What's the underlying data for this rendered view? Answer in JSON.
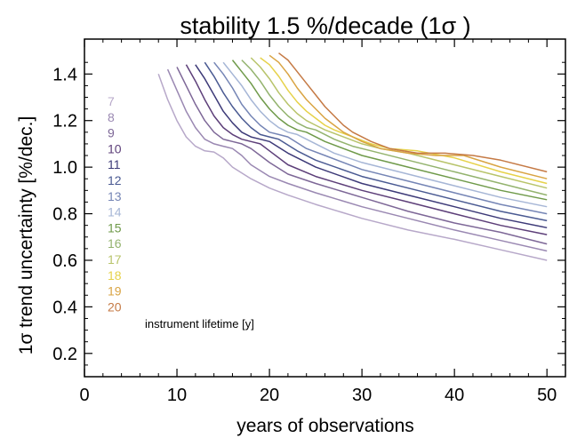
{
  "chart_data": {
    "type": "line",
    "title": "stability 1.5 %/decade (1σ )",
    "xlabel": "years of observations",
    "ylabel": "1σ  trend uncertainty [%/dec.]",
    "xlim": [
      0,
      52
    ],
    "ylim": [
      0.1,
      1.55
    ],
    "xticks": [
      0,
      10,
      20,
      30,
      40,
      50
    ],
    "yticks": [
      0.2,
      0.4,
      0.6,
      0.8,
      1.0,
      1.2,
      1.4
    ],
    "ytick_labels": [
      "0.2",
      "0.4",
      "0.6",
      "0.8",
      "1.0",
      "1.2",
      "1.4"
    ],
    "grid": false,
    "legend_placement": "left",
    "legend_note": "instrument lifetime [y]",
    "series": [
      {
        "name": "7",
        "color": "#b7a8c9",
        "x": [
          8,
          9,
          10,
          11,
          12,
          13,
          14,
          15,
          16,
          18,
          20,
          22,
          25,
          30,
          35,
          40,
          45,
          50
        ],
        "y": [
          1.4,
          1.29,
          1.2,
          1.13,
          1.09,
          1.07,
          1.065,
          1.04,
          1.0,
          0.95,
          0.91,
          0.88,
          0.84,
          0.78,
          0.73,
          0.69,
          0.645,
          0.6
        ]
      },
      {
        "name": "8",
        "color": "#9a88b2",
        "x": [
          9,
          10,
          11,
          12,
          13,
          14,
          15,
          16,
          17,
          18,
          20,
          22,
          25,
          30,
          35,
          40,
          45,
          50
        ],
        "y": [
          1.42,
          1.33,
          1.24,
          1.17,
          1.12,
          1.1,
          1.09,
          1.08,
          1.05,
          1.01,
          0.96,
          0.93,
          0.89,
          0.83,
          0.78,
          0.73,
          0.685,
          0.64
        ]
      },
      {
        "name": "9",
        "color": "#7d6797",
        "x": [
          10,
          11,
          12,
          13,
          14,
          15,
          16,
          17,
          18,
          19,
          20,
          22,
          25,
          30,
          35,
          40,
          45,
          50
        ],
        "y": [
          1.43,
          1.35,
          1.27,
          1.2,
          1.15,
          1.12,
          1.11,
          1.1,
          1.08,
          1.05,
          1.02,
          0.97,
          0.93,
          0.87,
          0.81,
          0.76,
          0.72,
          0.67
        ]
      },
      {
        "name": "10",
        "color": "#5d3f79",
        "x": [
          11,
          12,
          13,
          14,
          15,
          16,
          17,
          18,
          19,
          20,
          22,
          25,
          30,
          35,
          40,
          45,
          50
        ],
        "y": [
          1.44,
          1.37,
          1.29,
          1.22,
          1.17,
          1.14,
          1.12,
          1.11,
          1.1,
          1.07,
          1.01,
          0.96,
          0.9,
          0.85,
          0.8,
          0.75,
          0.71
        ]
      },
      {
        "name": "11",
        "color": "#3d3a78",
        "x": [
          12,
          13,
          14,
          15,
          16,
          17,
          18,
          19,
          20,
          22,
          25,
          30,
          35,
          40,
          45,
          50
        ],
        "y": [
          1.44,
          1.38,
          1.31,
          1.24,
          1.19,
          1.15,
          1.13,
          1.12,
          1.11,
          1.06,
          1.0,
          0.93,
          0.88,
          0.83,
          0.78,
          0.74
        ]
      },
      {
        "name": "12",
        "color": "#4a5a92",
        "x": [
          13,
          14,
          15,
          16,
          17,
          18,
          19,
          20,
          21,
          23,
          25,
          30,
          35,
          40,
          45,
          50
        ],
        "y": [
          1.45,
          1.39,
          1.32,
          1.26,
          1.21,
          1.17,
          1.14,
          1.13,
          1.12,
          1.07,
          1.03,
          0.96,
          0.91,
          0.86,
          0.81,
          0.77
        ]
      },
      {
        "name": "13",
        "color": "#7585b5",
        "x": [
          14,
          15,
          16,
          17,
          18,
          19,
          20,
          21,
          22,
          24,
          26,
          30,
          35,
          40,
          45,
          50
        ],
        "y": [
          1.45,
          1.4,
          1.34,
          1.27,
          1.22,
          1.18,
          1.15,
          1.14,
          1.13,
          1.08,
          1.05,
          0.99,
          0.94,
          0.89,
          0.84,
          0.8
        ]
      },
      {
        "name": "14",
        "color": "#a6b6d6",
        "x": [
          15,
          16,
          17,
          18,
          19,
          20,
          21,
          22,
          23,
          25,
          27,
          30,
          35,
          40,
          45,
          50
        ],
        "y": [
          1.45,
          1.4,
          1.35,
          1.29,
          1.24,
          1.2,
          1.17,
          1.15,
          1.14,
          1.1,
          1.06,
          1.02,
          0.97,
          0.92,
          0.87,
          0.83
        ]
      },
      {
        "name": "15",
        "color": "#6f9a4a",
        "x": [
          16,
          17,
          18,
          19,
          20,
          21,
          22,
          23,
          24,
          26,
          28,
          30,
          35,
          40,
          45,
          50
        ],
        "y": [
          1.46,
          1.41,
          1.36,
          1.3,
          1.25,
          1.21,
          1.18,
          1.16,
          1.15,
          1.11,
          1.08,
          1.05,
          1.0,
          0.95,
          0.9,
          0.86
        ]
      },
      {
        "name": "16",
        "color": "#93b36e",
        "x": [
          17,
          18,
          19,
          20,
          21,
          22,
          23,
          24,
          25,
          27,
          29,
          31,
          35,
          40,
          45,
          50
        ],
        "y": [
          1.46,
          1.42,
          1.37,
          1.31,
          1.26,
          1.22,
          1.19,
          1.17,
          1.16,
          1.12,
          1.09,
          1.07,
          1.03,
          0.98,
          0.93,
          0.88
        ]
      },
      {
        "name": "17",
        "color": "#b8c46b",
        "x": [
          18,
          19,
          20,
          21,
          22,
          23,
          24,
          25,
          26,
          28,
          30,
          32,
          35,
          40,
          45,
          50
        ],
        "y": [
          1.47,
          1.43,
          1.38,
          1.32,
          1.27,
          1.23,
          1.2,
          1.18,
          1.16,
          1.13,
          1.1,
          1.08,
          1.06,
          1.01,
          0.96,
          0.91
        ]
      },
      {
        "name": "18",
        "color": "#e6d24a",
        "x": [
          19,
          20,
          21,
          22,
          23,
          24,
          25,
          26,
          27,
          29,
          31,
          33,
          36,
          40,
          45,
          50
        ],
        "y": [
          1.47,
          1.44,
          1.39,
          1.33,
          1.28,
          1.24,
          1.21,
          1.18,
          1.16,
          1.13,
          1.1,
          1.08,
          1.07,
          1.04,
          0.98,
          0.93
        ]
      },
      {
        "name": "19",
        "color": "#d9a443",
        "x": [
          20,
          21,
          22,
          23,
          24,
          25,
          26,
          27,
          28,
          30,
          32,
          35,
          38,
          41,
          45,
          50
        ],
        "y": [
          1.48,
          1.45,
          1.4,
          1.34,
          1.29,
          1.25,
          1.21,
          1.18,
          1.15,
          1.11,
          1.08,
          1.06,
          1.05,
          1.05,
          1.0,
          0.95
        ]
      },
      {
        "name": "20",
        "color": "#c57a45",
        "x": [
          21,
          22,
          23,
          24,
          25,
          26,
          27,
          28,
          29,
          31,
          33,
          36,
          39,
          42,
          45,
          50
        ],
        "y": [
          1.49,
          1.46,
          1.41,
          1.36,
          1.31,
          1.26,
          1.22,
          1.18,
          1.15,
          1.11,
          1.08,
          1.06,
          1.06,
          1.05,
          1.03,
          0.98
        ]
      }
    ]
  }
}
